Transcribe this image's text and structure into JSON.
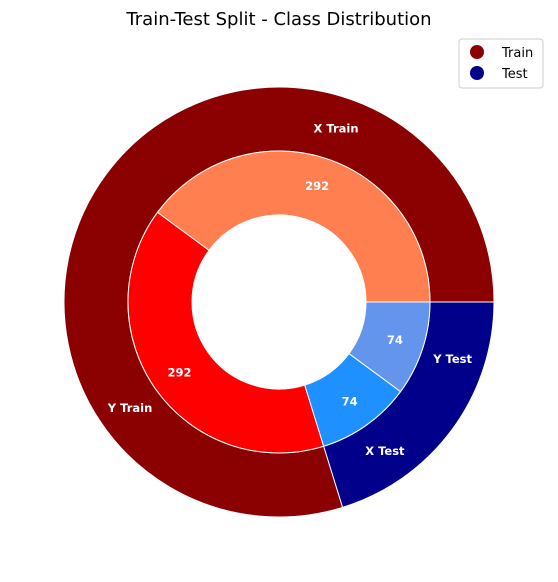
{
  "chart_data": {
    "type": "pie",
    "title": "Train-Test Split - Class Distribution",
    "outer_ring": {
      "slices": [
        {
          "label": "Train",
          "value": 584,
          "color": "#8b0000"
        },
        {
          "label": "Test",
          "value": 148,
          "color": "#00008b"
        }
      ]
    },
    "inner_ring": {
      "slices": [
        {
          "label": "X Train",
          "value": 292,
          "color": "#ff7f50"
        },
        {
          "label": "Y Train",
          "value": 292,
          "color": "#ff0000"
        },
        {
          "label": "X Test",
          "value": 74,
          "color": "#1e90ff"
        },
        {
          "label": "Y Test",
          "value": 74,
          "color": "#6495ed"
        }
      ]
    },
    "legend": {
      "placement": "top-right",
      "entries": [
        {
          "label": "Train",
          "color": "#8b0000"
        },
        {
          "label": "Test",
          "color": "#00008b"
        }
      ]
    }
  }
}
